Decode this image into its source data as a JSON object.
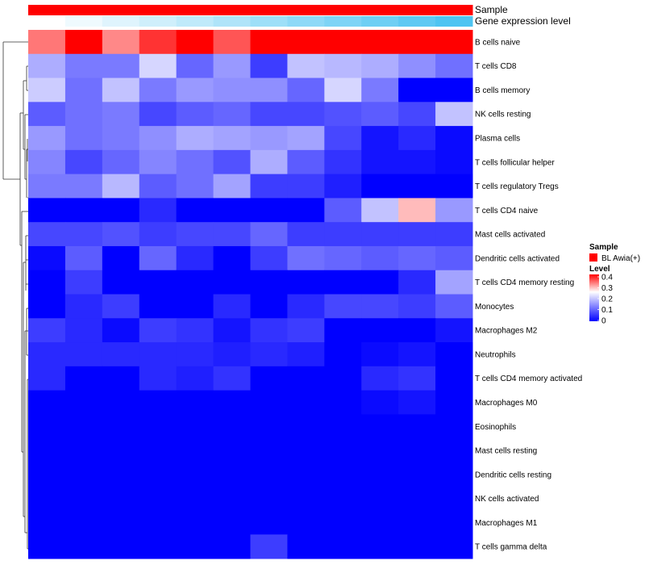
{
  "chart_data": {
    "type": "heatmap",
    "annotation_labels": {
      "sample": "Sample",
      "gene_expression": "Gene expression level"
    },
    "rows": [
      "B cells naive",
      "T cells CD8",
      "B cells memory",
      "NK cells resting",
      "Plasma cells",
      "T cells follicular helper",
      "T cells regulatory  Tregs",
      "T cells CD4 naive",
      "Mast cells activated",
      "Dendritic cells activated",
      "T cells CD4 memory resting",
      "Monocytes",
      "Macrophages M2",
      "Neutrophils",
      "T cells CD4 memory activated",
      "Macrophages M0",
      "Eosinophils",
      "Mast cells resting",
      "Dendritic cells resting",
      "NK cells activated",
      "Macrophages M1",
      "T cells gamma delta"
    ],
    "values": [
      [
        0.33,
        0.43,
        0.32,
        0.37,
        0.41,
        0.35,
        0.42,
        0.43,
        0.41,
        0.44,
        0.43,
        0.44
      ],
      [
        0.17,
        0.12,
        0.12,
        0.21,
        0.1,
        0.15,
        0.06,
        0.19,
        0.18,
        0.17,
        0.14,
        0.11
      ],
      [
        0.2,
        0.11,
        0.19,
        0.12,
        0.15,
        0.14,
        0.14,
        0.1,
        0.21,
        0.12,
        0.0,
        0.0
      ],
      [
        0.09,
        0.11,
        0.12,
        0.07,
        0.09,
        0.1,
        0.07,
        0.07,
        0.08,
        0.09,
        0.07,
        0.19
      ],
      [
        0.15,
        0.11,
        0.12,
        0.14,
        0.17,
        0.16,
        0.15,
        0.16,
        0.07,
        0.02,
        0.04,
        0.01
      ],
      [
        0.13,
        0.07,
        0.1,
        0.13,
        0.11,
        0.08,
        0.17,
        0.09,
        0.05,
        0.02,
        0.02,
        0.01
      ],
      [
        0.12,
        0.12,
        0.18,
        0.09,
        0.11,
        0.16,
        0.06,
        0.06,
        0.03,
        0.0,
        0.0,
        0.0
      ],
      [
        0.0,
        0.0,
        0.0,
        0.04,
        0.0,
        0.0,
        0.0,
        0.0,
        0.09,
        0.19,
        0.29,
        0.15
      ],
      [
        0.07,
        0.07,
        0.08,
        0.06,
        0.07,
        0.07,
        0.1,
        0.06,
        0.06,
        0.06,
        0.06,
        0.06
      ],
      [
        0.01,
        0.09,
        0.0,
        0.1,
        0.04,
        0.0,
        0.06,
        0.11,
        0.1,
        0.09,
        0.1,
        0.09
      ],
      [
        0.0,
        0.06,
        0.0,
        0.0,
        0.0,
        0.0,
        0.0,
        0.0,
        0.0,
        0.0,
        0.04,
        0.16
      ],
      [
        0.0,
        0.04,
        0.06,
        0.0,
        0.0,
        0.04,
        0.0,
        0.04,
        0.07,
        0.07,
        0.06,
        0.09
      ],
      [
        0.06,
        0.04,
        0.01,
        0.06,
        0.05,
        0.02,
        0.05,
        0.06,
        0.0,
        0.0,
        0.0,
        0.02
      ],
      [
        0.04,
        0.04,
        0.04,
        0.04,
        0.04,
        0.03,
        0.04,
        0.03,
        0.0,
        0.01,
        0.02,
        0.0
      ],
      [
        0.04,
        0.0,
        0.0,
        0.04,
        0.03,
        0.05,
        0.0,
        0.0,
        0.0,
        0.04,
        0.05,
        0.0
      ],
      [
        0.0,
        0.0,
        0.0,
        0.0,
        0.0,
        0.0,
        0.0,
        0.0,
        0.0,
        0.01,
        0.02,
        0.0
      ],
      [
        0.0,
        0.0,
        0.0,
        0.0,
        0.0,
        0.0,
        0.0,
        0.0,
        0.0,
        0.0,
        0.0,
        0.0
      ],
      [
        0.0,
        0.0,
        0.0,
        0.0,
        0.0,
        0.0,
        0.0,
        0.0,
        0.0,
        0.0,
        0.0,
        0.0
      ],
      [
        0.0,
        0.0,
        0.0,
        0.0,
        0.0,
        0.0,
        0.0,
        0.0,
        0.0,
        0.0,
        0.0,
        0.0
      ],
      [
        0.0,
        0.0,
        0.0,
        0.0,
        0.0,
        0.0,
        0.0,
        0.0,
        0.0,
        0.0,
        0.0,
        0.0
      ],
      [
        0.0,
        0.0,
        0.0,
        0.0,
        0.0,
        0.0,
        0.0,
        0.0,
        0.0,
        0.0,
        0.0,
        0.0
      ],
      [
        0.0,
        0.0,
        0.0,
        0.0,
        0.0,
        0.0,
        0.06,
        0.0,
        0.0,
        0.0,
        0.0,
        0.0
      ]
    ],
    "gene_expression_level": [
      0.0,
      0.09,
      0.18,
      0.27,
      0.36,
      0.45,
      0.55,
      0.64,
      0.73,
      0.82,
      0.91,
      1.0
    ],
    "color_scale": {
      "min": 0,
      "max": 0.4,
      "low": "#0000ff",
      "mid": "#ffffff",
      "high": "#ff0000",
      "midpoint": 0.25
    },
    "legend": {
      "sample_title": "Sample",
      "sample_entry": "BL Awia(+)",
      "sample_color": "#ff0000",
      "level_title": "Level",
      "level_ticks": [
        "0.4",
        "0.3",
        "0.2",
        "0.1",
        "0"
      ],
      "placement": "right"
    },
    "annotation_colors": {
      "gene_low": "#ffffff",
      "gene_high": "#4ec4f2"
    },
    "row_dendrogram": true
  }
}
